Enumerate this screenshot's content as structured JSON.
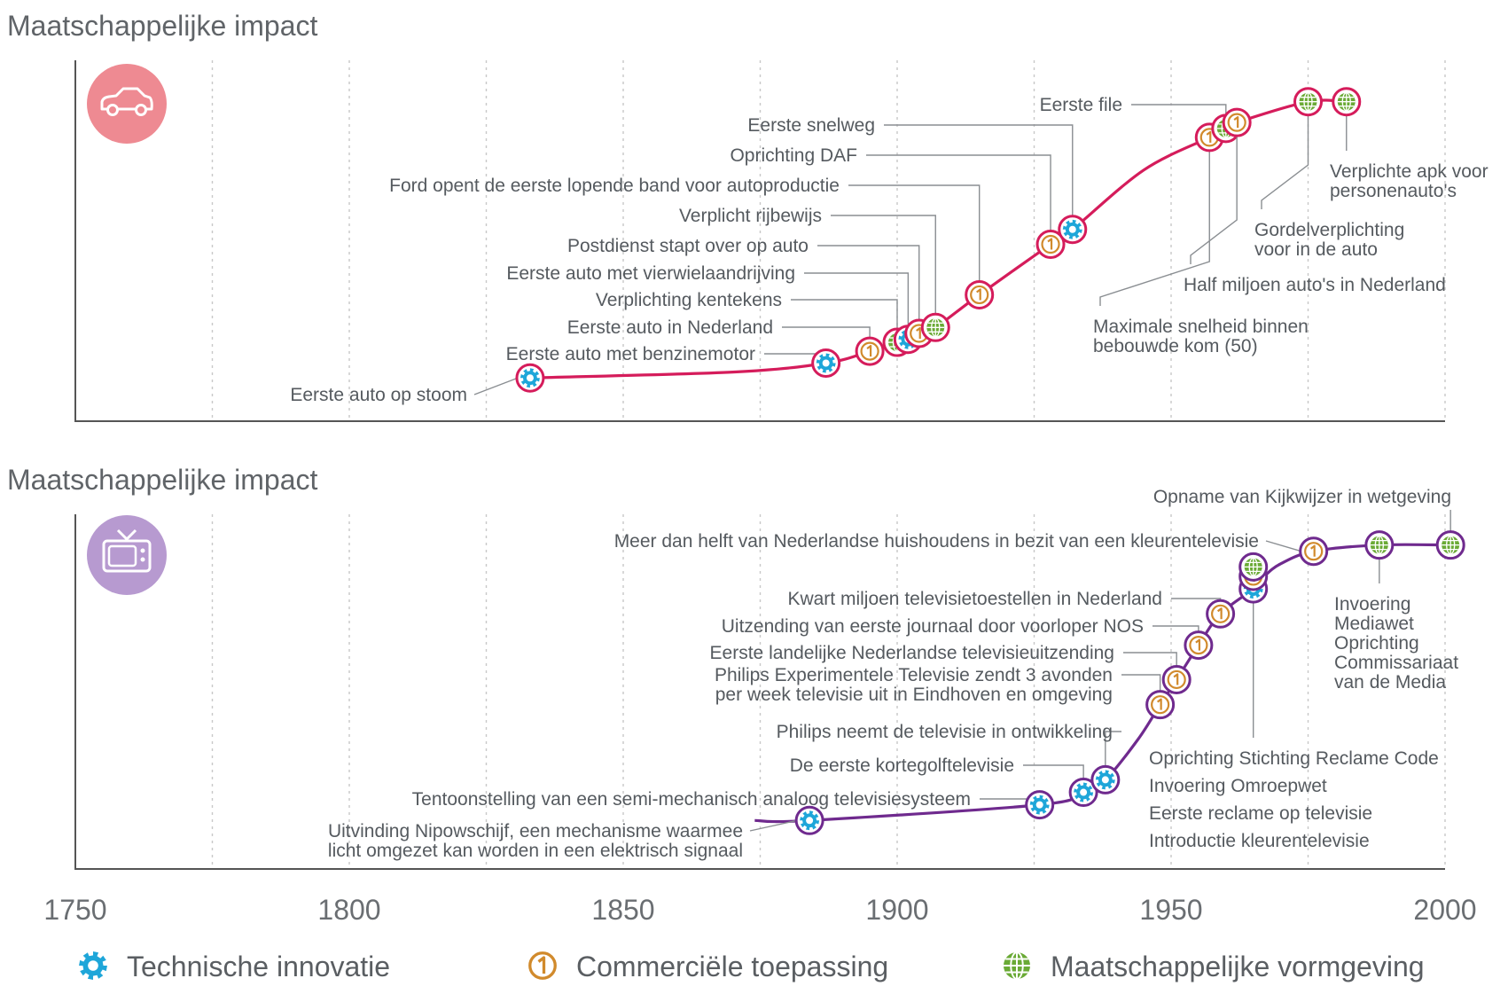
{
  "colors": {
    "auto_line": "#d51c5b",
    "tv_line": "#6f2a8e",
    "technisch": "#1ea6d9",
    "commercieel": "#d18a2c",
    "maatschappelijk": "#6aaa35",
    "auto_icon_bg": "#ee8a92",
    "tv_icon_bg": "#b79ad0"
  },
  "legend": [
    {
      "key": "technisch",
      "label": "Technische innovatie",
      "icon": "gear-icon"
    },
    {
      "key": "commercieel",
      "label": "Commerciële toepassing",
      "icon": "number-one-icon"
    },
    {
      "key": "maatschappelijk",
      "label": "Maatschappelijke vormgeving",
      "icon": "globe-icon"
    }
  ],
  "chart_data": [
    {
      "type": "line",
      "ylabel": "Maatschappelijke impact",
      "icon": "car-icon",
      "xlim": [
        1750,
        2000
      ],
      "xticks": [
        1750,
        1800,
        1850,
        1900,
        1950,
        2000
      ],
      "curve": [
        [
          1833,
          0.05
        ],
        [
          1870,
          0.07
        ],
        [
          1887,
          0.1
        ],
        [
          1895,
          0.14
        ],
        [
          1900,
          0.17
        ],
        [
          1903,
          0.19
        ],
        [
          1905,
          0.21
        ],
        [
          1907,
          0.22
        ],
        [
          1915,
          0.33
        ],
        [
          1928,
          0.5
        ],
        [
          1932,
          0.55
        ],
        [
          1945,
          0.75
        ],
        [
          1957,
          0.86
        ],
        [
          1960,
          0.89
        ],
        [
          1962,
          0.91
        ],
        [
          1975,
          0.98
        ],
        [
          1982,
          0.98
        ]
      ],
      "events": [
        {
          "year": 1833,
          "value": 0.05,
          "type": "technisch",
          "label": [
            "Eerste auto op stoom"
          ]
        },
        {
          "year": 1887,
          "value": 0.1,
          "type": "technisch",
          "label": [
            "Eerste auto met benzinemotor"
          ]
        },
        {
          "year": 1895,
          "value": 0.14,
          "type": "commercieel",
          "label": [
            "Eerste auto in Nederland"
          ]
        },
        {
          "year": 1900,
          "value": 0.17,
          "type": "maatschappelijk",
          "label": [
            "Verplichting kentekens"
          ]
        },
        {
          "year": 1902,
          "value": 0.18,
          "type": "technisch",
          "label": [
            "Eerste auto met vierwielaandrijving"
          ]
        },
        {
          "year": 1904,
          "value": 0.2,
          "type": "commercieel",
          "label": [
            "Postdienst stapt over op auto"
          ]
        },
        {
          "year": 1907,
          "value": 0.22,
          "type": "maatschappelijk",
          "label": [
            "Verplicht rijbewijs"
          ]
        },
        {
          "year": 1915,
          "value": 0.33,
          "type": "commercieel",
          "label": [
            "Ford opent de eerste lopende band voor autoproductie"
          ]
        },
        {
          "year": 1928,
          "value": 0.5,
          "type": "commercieel",
          "label": [
            "Oprichting DAF"
          ]
        },
        {
          "year": 1932,
          "value": 0.55,
          "type": "technisch",
          "label": [
            "Eerste snelweg"
          ]
        },
        {
          "year": 1957,
          "value": 0.86,
          "type": "commercieel",
          "label": [
            "Maximale snelheid binnen",
            "bebouwde kom (50)"
          ]
        },
        {
          "year": 1960,
          "value": 0.89,
          "type": "maatschappelijk",
          "label": [
            "Eerste file"
          ]
        },
        {
          "year": 1962,
          "value": 0.91,
          "type": "commercieel",
          "label": [
            "Half miljoen auto's in Nederland"
          ]
        },
        {
          "year": 1975,
          "value": 0.98,
          "type": "maatschappelijk",
          "label": [
            "Gordelverplichting",
            "voor in de auto"
          ]
        },
        {
          "year": 1982,
          "value": 0.98,
          "type": "maatschappelijk",
          "label": [
            "Verplichte apk voor",
            "personenauto's"
          ]
        }
      ]
    },
    {
      "type": "line",
      "ylabel": "Maatschappelijke impact",
      "icon": "tv-icon",
      "xlim": [
        1750,
        2000
      ],
      "xticks": [
        1750,
        1800,
        1850,
        1900,
        1950,
        2000
      ],
      "curve": [
        [
          1874,
          0.07
        ],
        [
          1884,
          0.07
        ],
        [
          1926,
          0.12
        ],
        [
          1934,
          0.16
        ],
        [
          1938,
          0.2
        ],
        [
          1944,
          0.33
        ],
        [
          1948,
          0.44
        ],
        [
          1951,
          0.52
        ],
        [
          1955,
          0.63
        ],
        [
          1959,
          0.73
        ],
        [
          1965,
          0.81
        ],
        [
          1967,
          0.85
        ],
        [
          1970,
          0.89
        ],
        [
          1976,
          0.93
        ],
        [
          1988,
          0.95
        ],
        [
          2001,
          0.95
        ]
      ],
      "events": [
        {
          "year": 1884,
          "value": 0.07,
          "type": "technisch",
          "label": [
            "Uitvinding Nipowschijf, een mechanisme waarmee",
            "licht omgezet kan worden in een elektrisch signaal"
          ]
        },
        {
          "year": 1926,
          "value": 0.12,
          "type": "technisch",
          "label": [
            "Tentoonstelling van een semi-mechanisch analoog televisiesysteem"
          ]
        },
        {
          "year": 1934,
          "value": 0.16,
          "type": "technisch",
          "label": [
            "De eerste kortegolftelevisie"
          ]
        },
        {
          "year": 1938,
          "value": 0.2,
          "type": "technisch",
          "label": [
            "Philips neemt de televisie in ontwikkeling"
          ]
        },
        {
          "year": 1948,
          "value": 0.44,
          "type": "commercieel",
          "label": [
            "Philips Experimentele Televisie zendt 3 avonden",
            "per week televisie uit in Eindhoven en omgeving"
          ]
        },
        {
          "year": 1951,
          "value": 0.52,
          "type": "commercieel",
          "label": [
            "Eerste landelijke Nederlandse televisieuitzending"
          ]
        },
        {
          "year": 1955,
          "value": 0.63,
          "type": "commercieel",
          "label": [
            "Uitzending van eerste journaal door voorloper NOS"
          ]
        },
        {
          "year": 1959,
          "value": 0.73,
          "type": "commercieel",
          "label": [
            "Kwart miljoen televisietoestellen in Nederland"
          ]
        },
        {
          "year": 1965,
          "value": 0.81,
          "type": "technisch",
          "label": [
            "Oprichting Stichting Reclame Code",
            "Invoering Omroepwet",
            "Eerste reclame op televisie",
            "Introductie kleurentelevisie"
          ]
        },
        {
          "year": 1965,
          "value": 0.85,
          "type": "commercieel",
          "label": []
        },
        {
          "year": 1965,
          "value": 0.88,
          "type": "maatschappelijk",
          "label": []
        },
        {
          "year": 1976,
          "value": 0.93,
          "type": "commercieel",
          "label": [
            "Meer dan helft van Nederlandse huishoudens in bezit van een kleurentelevisie"
          ]
        },
        {
          "year": 1988,
          "value": 0.95,
          "type": "maatschappelijk",
          "label": [
            "Invoering",
            "Mediawet",
            "Oprichting",
            "Commissariaat",
            "van de Media"
          ]
        },
        {
          "year": 2001,
          "value": 0.95,
          "type": "maatschappelijk",
          "label": [
            "Opname van Kijkwijzer in wetgeving"
          ]
        }
      ]
    }
  ]
}
